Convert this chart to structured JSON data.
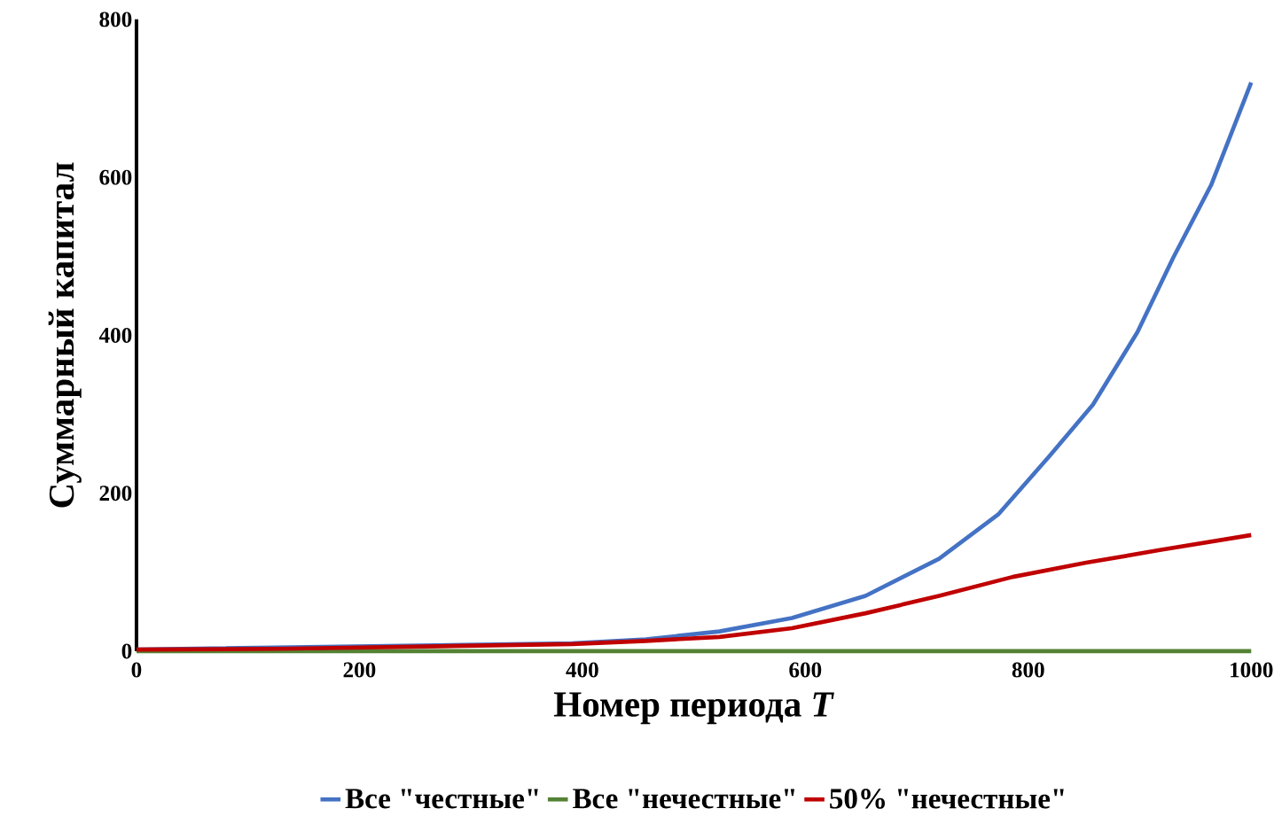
{
  "chart_data": {
    "type": "line",
    "xlabel": "Номер периода *T*",
    "ylabel": "Суммарный капитал",
    "xlim": [
      0,
      1000
    ],
    "ylim": [
      0,
      800
    ],
    "xticks": [
      0,
      200,
      400,
      600,
      800,
      1000
    ],
    "yticks": [
      0,
      200,
      400,
      600,
      800
    ],
    "grid": false,
    "legend": "bottom",
    "marker": "none",
    "series": [
      {
        "name": "Все \"честные\"",
        "color": "#4472c4",
        "x": [
          0,
          128,
          260,
          391,
          457,
          523,
          588,
          654,
          720,
          773,
          819,
          858,
          898,
          930,
          964,
          1000
        ],
        "values": [
          2,
          null,
          null,
          10,
          15,
          25,
          42,
          70,
          117,
          173,
          247,
          312,
          404,
          498,
          590,
          720
        ]
      },
      {
        "name": "Все \"нечестные\"",
        "color": "#548235",
        "x": [
          0,
          500,
          1000
        ],
        "values": [
          0,
          0,
          0
        ]
      },
      {
        "name": "50% \"нечестные\"",
        "color": "#c00000",
        "x": [
          0,
          128,
          260,
          391,
          457,
          523,
          588,
          654,
          720,
          786,
          852,
          918,
          1000
        ],
        "values": [
          2,
          3,
          6,
          9,
          13,
          18,
          29,
          48,
          70,
          94,
          112,
          128,
          147
        ]
      }
    ]
  }
}
